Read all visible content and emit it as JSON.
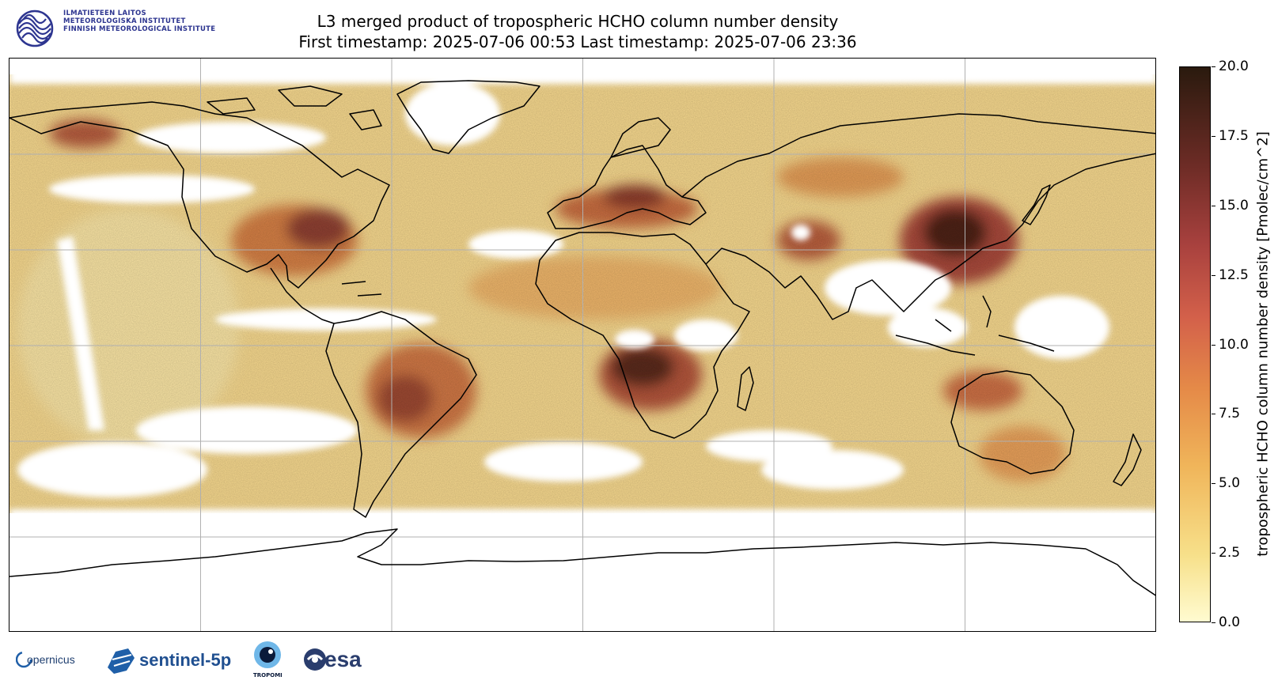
{
  "header": {
    "institute_lines": [
      "ILMATIETEEN LAITOS",
      "METEOROLOGISKA INSTITUTET",
      "FINNISH METEOROLOGICAL INSTITUTE"
    ],
    "title_line1": "L3 merged product of tropospheric HCHO column number density",
    "title_line2": "First timestamp: 2025-07-06 00:53   Last timestamp: 2025-07-06 23:36"
  },
  "colorbar": {
    "label": "tropospheric HCHO column number density [Pmolec/cm^2]",
    "min": 0,
    "max": 20,
    "ticks": [
      "0.0",
      "2.5",
      "5.0",
      "7.5",
      "10.0",
      "12.5",
      "15.0",
      "17.5",
      "20.0"
    ],
    "colormap": "YlOrBr-afmhot",
    "colors": [
      "#fffbd0",
      "#f7e08a",
      "#f0b55a",
      "#e58a48",
      "#d3604a",
      "#a8413e",
      "#6e2c26",
      "#2a1a0e"
    ]
  },
  "map": {
    "projection": "plate-carree",
    "gridlines": true,
    "background_color": "#ffffff",
    "coastline_color": "#000000"
  },
  "footer": {
    "copernicus": "opernicus",
    "sentinel": "sentinel-5p",
    "tropomi": "TROPOMI",
    "esa": "esa"
  }
}
